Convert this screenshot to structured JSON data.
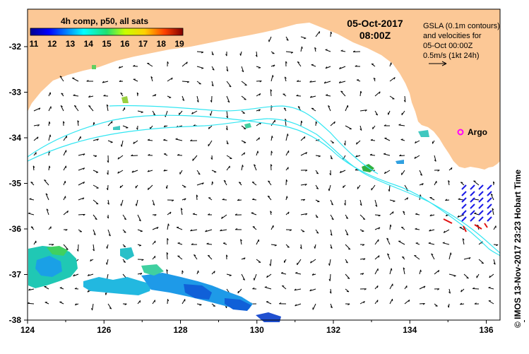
{
  "map": {
    "date": "05-Oct-2017",
    "time": "08:00Z",
    "colorbar": {
      "title": "4h comp, p50, all sats",
      "ticks": [
        "11",
        "12",
        "13",
        "14",
        "15",
        "16",
        "17",
        "18",
        "19"
      ]
    },
    "info_lines": [
      "GSLA (0.1m contours)",
      "and velocities for",
      "05-Oct 00:00Z",
      "0.5m/s (1kt 24h)"
    ],
    "argo_label": "Argo",
    "credit": "© IMOS 13-Nov-2017 23:23 Hobart Time",
    "lon_ticks": [
      "124",
      "126",
      "128",
      "130",
      "132",
      "134",
      "136"
    ],
    "lat_ticks": [
      "-32",
      "-33",
      "-34",
      "-35",
      "-36",
      "-37",
      "-38"
    ],
    "colors": {
      "land": "#fcc896",
      "contour": "#33e6f2",
      "argo": "#ff00ff"
    }
  }
}
